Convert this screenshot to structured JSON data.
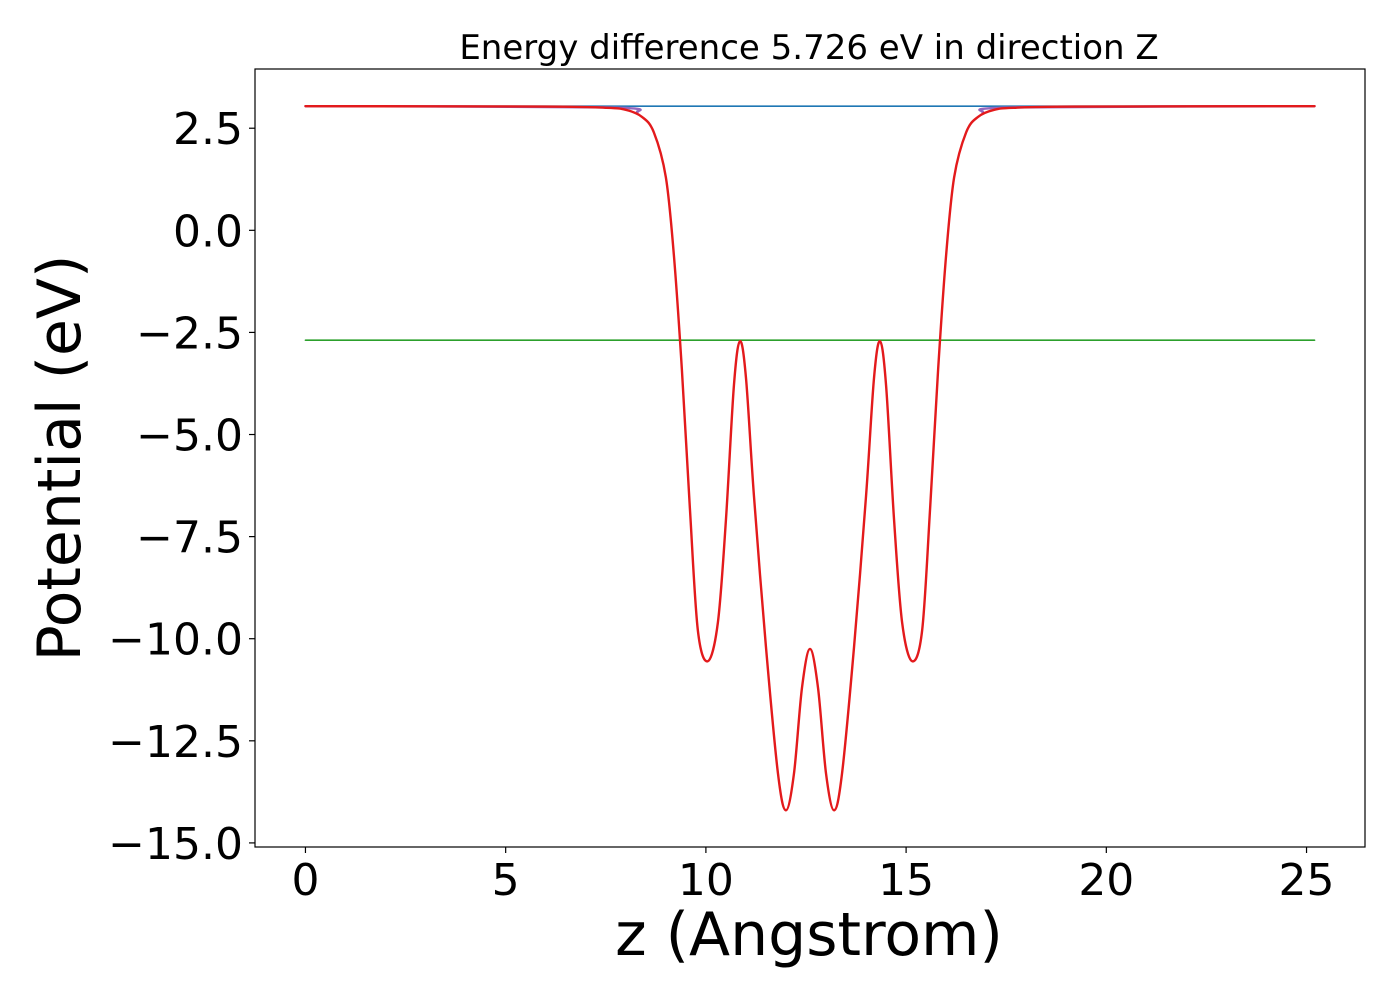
{
  "chart_data": {
    "type": "line",
    "title": "Energy difference 5.726 eV in direction Z",
    "xlabel": "z (Angstrom)",
    "ylabel": "Potential (eV)",
    "xlim": [
      -1.26,
      26.46
    ],
    "ylim": [
      -15.1,
      3.95
    ],
    "xticks": [
      0,
      5,
      10,
      15,
      20,
      25
    ],
    "xtick_labels": [
      "0",
      "5",
      "10",
      "15",
      "20",
      "25"
    ],
    "yticks": [
      2.5,
      0.0,
      -2.5,
      -5.0,
      -7.5,
      -10.0,
      -12.5,
      -15.0
    ],
    "ytick_labels": [
      "2.5",
      "0.0",
      "−2.5",
      "−5.0",
      "−7.5",
      "−10.0",
      "−12.5",
      "−15.0"
    ],
    "grid": false,
    "legend": false,
    "series": [
      {
        "color": "#1f77b4",
        "role": "horizontal",
        "x": [
          0,
          25.2
        ],
        "y": [
          3.04,
          3.04
        ]
      },
      {
        "color": "#2ca02c",
        "role": "horizontal",
        "x": [
          0,
          25.2
        ],
        "y": [
          -2.69,
          -2.69
        ]
      },
      {
        "color": "#9467bd",
        "role": "profile",
        "x": [
          0,
          7.5,
          8.3
        ],
        "y": [
          3.04,
          3.01,
          2.9
        ]
      },
      {
        "color": "#9467bd",
        "role": "profile",
        "x": [
          16.9,
          17.7,
          25.2
        ],
        "y": [
          2.9,
          3.01,
          3.04
        ]
      },
      {
        "color": "#e31a1c",
        "role": "profile",
        "x": [
          0,
          6.0,
          7.5,
          8.0,
          8.4,
          8.7,
          9.0,
          9.2,
          9.4,
          9.6,
          9.8,
          10.05,
          10.3,
          10.5,
          10.7,
          10.85,
          11.0,
          11.2,
          11.5,
          11.8,
          12.0,
          12.2,
          12.4,
          12.6,
          12.8,
          13.0,
          13.2,
          13.4,
          13.7,
          14.0,
          14.2,
          14.35,
          14.5,
          14.7,
          14.9,
          15.15,
          15.4,
          15.6,
          15.8,
          16.0,
          16.2,
          16.5,
          16.8,
          17.2,
          17.7,
          19.2,
          25.2
        ],
        "y": [
          3.04,
          3.03,
          3.0,
          2.95,
          2.78,
          2.4,
          1.3,
          -0.6,
          -3.4,
          -6.8,
          -9.8,
          -10.55,
          -9.6,
          -7.1,
          -3.8,
          -2.72,
          -3.6,
          -6.5,
          -10.2,
          -13.3,
          -14.2,
          -13.3,
          -11.2,
          -10.25,
          -11.2,
          -13.3,
          -14.2,
          -13.3,
          -10.2,
          -6.5,
          -3.6,
          -2.72,
          -3.8,
          -7.1,
          -9.6,
          -10.55,
          -9.8,
          -6.8,
          -3.4,
          -0.6,
          1.3,
          2.4,
          2.78,
          2.95,
          3.0,
          3.03,
          3.04
        ]
      }
    ]
  }
}
